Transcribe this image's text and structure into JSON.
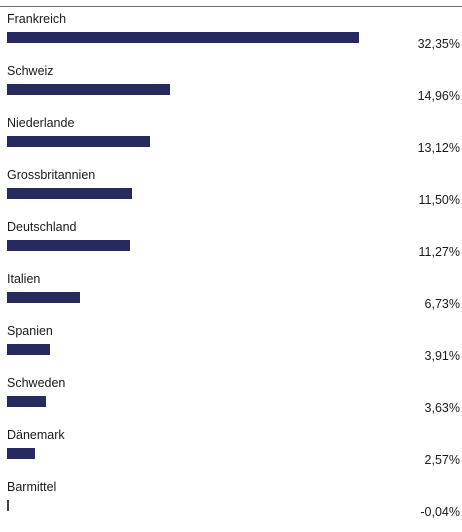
{
  "chart_data": {
    "type": "bar",
    "orientation": "horizontal",
    "categories": [
      "Frankreich",
      "Schweiz",
      "Niederlande",
      "Grossbritannien",
      "Deutschland",
      "Italien",
      "Spanien",
      "Schweden",
      "Dänemark",
      "Barmittel"
    ],
    "values": [
      32.35,
      14.96,
      13.12,
      11.5,
      11.27,
      6.73,
      3.91,
      3.63,
      2.57,
      -0.04
    ],
    "value_labels": [
      "32,35%",
      "14,96%",
      "13,12%",
      "11,50%",
      "11,27%",
      "6,73%",
      "3,91%",
      "3,63%",
      "2,57%",
      "-0,04%"
    ],
    "bar_color": "#262a5e",
    "grid": false,
    "legend": "none"
  }
}
